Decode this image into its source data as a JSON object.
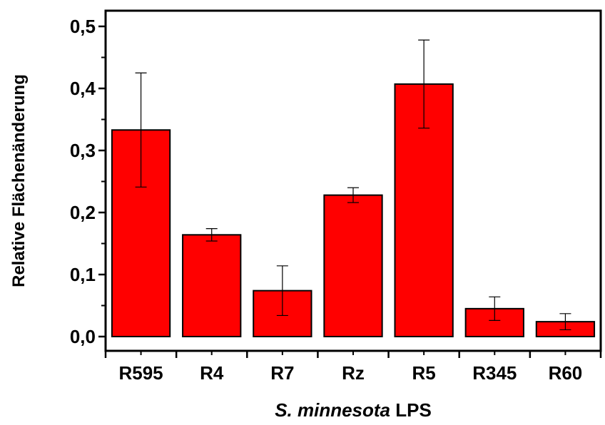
{
  "chart_data": {
    "type": "bar",
    "categories": [
      "R595",
      "R4",
      "R7",
      "Rz",
      "R5",
      "R345",
      "R60"
    ],
    "values": [
      0.333,
      0.164,
      0.074,
      0.228,
      0.407,
      0.045,
      0.024
    ],
    "errors": [
      0.092,
      0.01,
      0.04,
      0.012,
      0.071,
      0.019,
      0.013
    ],
    "ylabel": "Relative Flächenänderung",
    "xlabel_italic": "S. minnesota",
    "xlabel_rest": " LPS",
    "ylim": [
      -0.02,
      0.53
    ],
    "yticks": [
      "0,0",
      "0,1",
      "0,2",
      "0,3",
      "0,4",
      "0,5"
    ],
    "ytick_values": [
      0.0,
      0.1,
      0.2,
      0.3,
      0.4,
      0.5
    ],
    "bar_color": "#ff0000",
    "grid": false
  }
}
